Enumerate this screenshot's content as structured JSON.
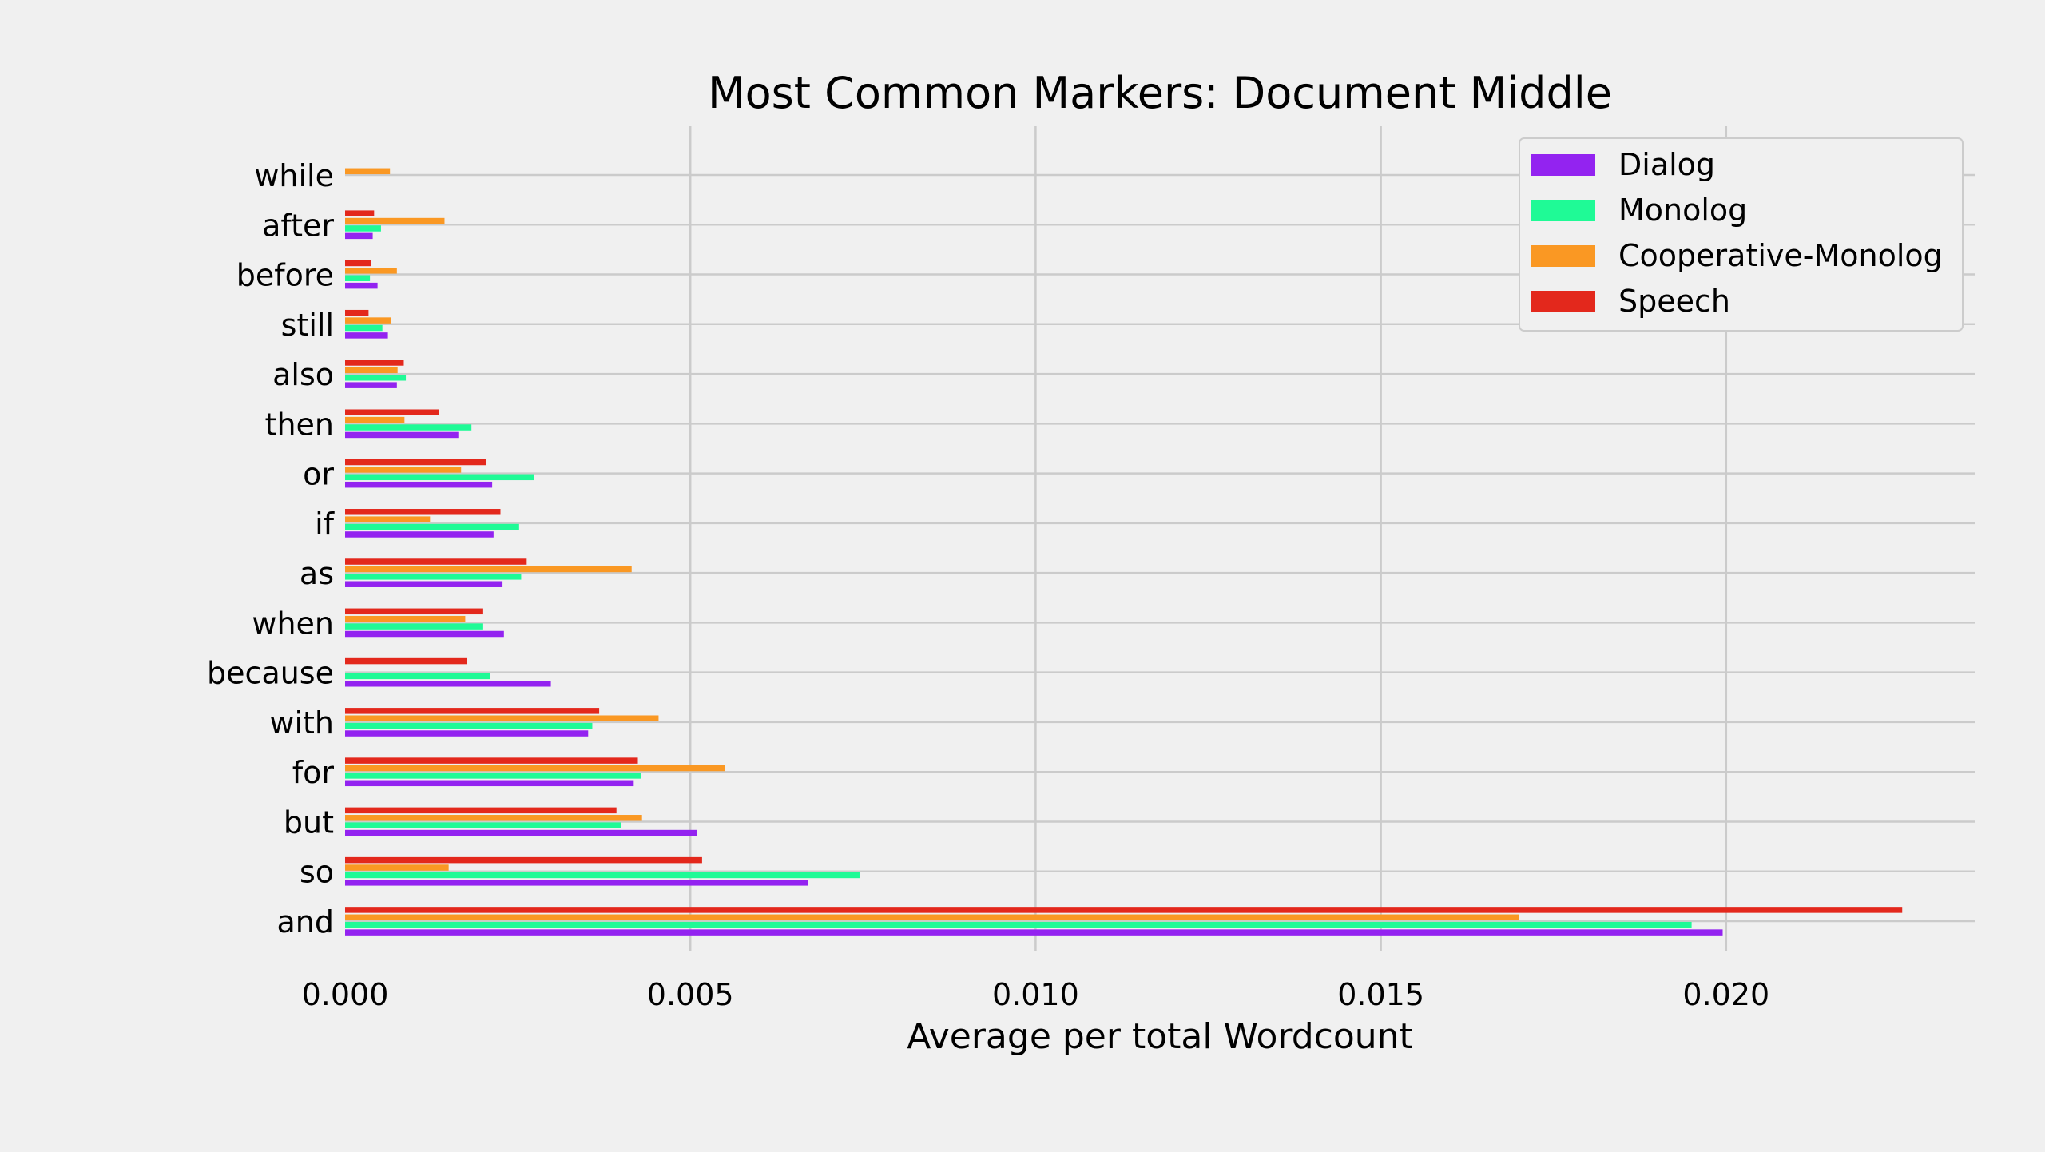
{
  "chart_data": {
    "type": "bar",
    "orientation": "horizontal",
    "title": "Most Common Markers: Document Middle",
    "xlabel": "Average per total Wordcount",
    "ylabel": "",
    "xlim": [
      0,
      0.0236
    ],
    "xticks": [
      0.0,
      0.005,
      0.01,
      0.015,
      0.02
    ],
    "xtick_labels": [
      "0.000",
      "0.005",
      "0.010",
      "0.015",
      "0.020"
    ],
    "grid": true,
    "legend_position": "top-right",
    "categories": [
      "and",
      "so",
      "but",
      "for",
      "with",
      "because",
      "when",
      "as",
      "if",
      "or",
      "then",
      "also",
      "still",
      "before",
      "after",
      "while"
    ],
    "series": [
      {
        "name": "Dialog",
        "color": "#9323f0",
        "values": [
          0.01995,
          0.0067,
          0.0051,
          0.00418,
          0.00352,
          0.00298,
          0.0023,
          0.00228,
          0.00215,
          0.00213,
          0.00164,
          0.00075,
          0.00062,
          0.00047,
          0.0004,
          0.0
        ]
      },
      {
        "name": "Monolog",
        "color": "#1ffa96",
        "values": [
          0.0195,
          0.00745,
          0.004,
          0.00428,
          0.00358,
          0.0021,
          0.002,
          0.00255,
          0.00252,
          0.00274,
          0.00183,
          0.00088,
          0.00054,
          0.00036,
          0.00052,
          0.0
        ]
      },
      {
        "name": "Cooperative-Monolog",
        "color": "#fa9823",
        "values": [
          0.017,
          0.0015,
          0.0043,
          0.0055,
          0.00454,
          0.0,
          0.00174,
          0.00415,
          0.00123,
          0.00168,
          0.00086,
          0.00076,
          0.00066,
          0.00075,
          0.00144,
          0.00065
        ]
      },
      {
        "name": "Speech",
        "color": "#e3281c",
        "values": [
          0.02255,
          0.00517,
          0.00393,
          0.00424,
          0.00368,
          0.00177,
          0.002,
          0.00263,
          0.00225,
          0.00204,
          0.00136,
          0.00085,
          0.00034,
          0.00038,
          0.00042,
          0.0
        ]
      }
    ]
  }
}
